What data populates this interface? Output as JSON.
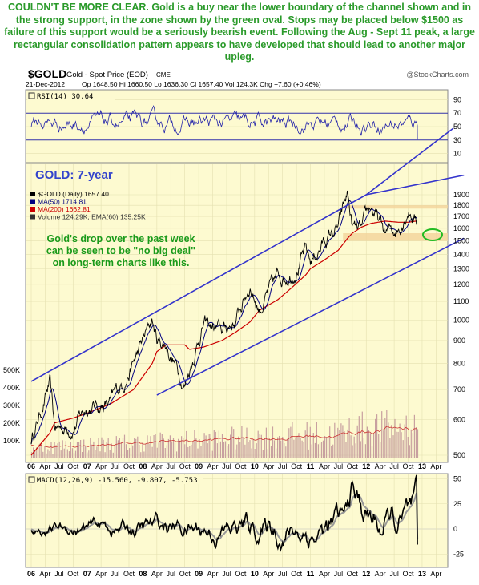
{
  "headline": {
    "lead": "COULDN'T BE MORE CLEAR.",
    "text": " Gold is a buy near the lower boundary of the channel shown and in the strong support, in the zone shown by the green oval. Stops may be placed below $1500 as failure of this support would be a seriously bearish event. Following the Aug - Sept 11 peak, a large rectangular consolidation pattern appears to have developed that should lead to another major upleg."
  },
  "header": {
    "symbol": "$GOLD",
    "name": "Gold - Spot Price (EOD)",
    "exchange": "CME",
    "watermark": "@StockCharts.com",
    "date": "21-Dec-2012",
    "quote": "Op 1648.50  Hi 1660.50  Lo 1636.30  Cl 1657.40  Vol 124.3K  Chg +7.60 (+0.46%)",
    "chg_up_icon": "up-triangle-icon"
  },
  "rsi_panel": {
    "label": "RSI(14) 30.64",
    "ticks": [
      "90",
      "70",
      "50",
      "30",
      "10"
    ]
  },
  "price_panel": {
    "title": "GOLD: 7-year",
    "legend": [
      {
        "text": "$GOLD (Daily) 1657.40",
        "color": "#000000"
      },
      {
        "text": "MA(50) 1714.81",
        "color": "#000080"
      },
      {
        "text": "MA(200) 1662.81",
        "color": "#cc0000"
      },
      {
        "text": "Volume 124.29K, EMA(60) 135.25K",
        "color": "#333333"
      }
    ],
    "annotation": [
      "Gold's drop over the past week",
      "can be seen to be \"no big deal\"",
      "on long-term charts like this."
    ],
    "price_ticks": [
      "1900",
      "1800",
      "1700",
      "1600",
      "1500",
      "1400",
      "1300",
      "1200",
      "1100",
      "1000",
      "900",
      "800",
      "700",
      "600",
      "500"
    ],
    "volume_ticks": [
      "500K",
      "400K",
      "300K",
      "200K",
      "100K"
    ],
    "x_labels": [
      "06",
      "Apr",
      "Jul",
      "Oct",
      "07",
      "Apr",
      "Jul",
      "Oct",
      "08",
      "Apr",
      "Jul",
      "Oct",
      "09",
      "Apr",
      "Jul",
      "Oct",
      "10",
      "Apr",
      "Jul",
      "Oct",
      "11",
      "Apr",
      "Jul",
      "Oct",
      "12",
      "Apr",
      "Jul",
      "Oct",
      "13",
      "Apr"
    ]
  },
  "macd_panel": {
    "label": "MACD(12,26,9) -15.560, -9.807, -5.753",
    "ticks": [
      "50",
      "25",
      "0",
      "-25"
    ],
    "x_labels": [
      "06",
      "Apr",
      "Jul",
      "Oct",
      "07",
      "Apr",
      "Jul",
      "Oct",
      "08",
      "Apr",
      "Jul",
      "Oct",
      "09",
      "Apr",
      "Jul",
      "Oct",
      "10",
      "Apr",
      "Jul",
      "Oct",
      "11",
      "Apr",
      "Jul",
      "Oct",
      "12",
      "Apr",
      "Jul",
      "Oct",
      "13",
      "Apr"
    ]
  },
  "colors": {
    "panel_bg": "#fdfad0",
    "price_line": "#000000",
    "ma50": "#000080",
    "ma200": "#cc0000",
    "channel": "#3333cc",
    "rsi_line": "#2222aa",
    "volume": "#c8a0a0",
    "zone": "#f3d39a",
    "oval": "#22bb22",
    "annotation_text": "#1a9a1a",
    "title_text": "#3344cc"
  },
  "chart_data": {
    "type": "line",
    "title": "GOLD: 7-year",
    "scale": "log",
    "ylim": [
      480,
      1950
    ],
    "x": [
      "2006-01",
      "2006-05",
      "2006-06",
      "2006-10",
      "2007-01",
      "2007-06",
      "2007-11",
      "2008-03",
      "2008-04",
      "2008-06",
      "2008-10",
      "2008-11",
      "2009-02",
      "2009-06",
      "2009-09",
      "2009-12",
      "2010-02",
      "2010-06",
      "2010-09",
      "2010-12",
      "2011-01",
      "2011-04",
      "2011-07",
      "2011-09",
      "2011-10",
      "2011-12",
      "2012-02",
      "2012-05",
      "2012-08",
      "2012-10",
      "2012-12"
    ],
    "series": [
      {
        "name": "$GOLD (Daily) 1657.40",
        "values": [
          540,
          720,
          570,
          580,
          640,
          650,
          800,
          1000,
          900,
          880,
          720,
          780,
          980,
          940,
          1000,
          1200,
          1060,
          1240,
          1280,
          1410,
          1340,
          1500,
          1600,
          1900,
          1600,
          1560,
          1780,
          1550,
          1610,
          1790,
          1657
        ]
      },
      {
        "name": "MA(200) 1662.81",
        "values": [
          500,
          560,
          590,
          605,
          620,
          650,
          700,
          800,
          850,
          880,
          880,
          860,
          870,
          900,
          940,
          990,
          1050,
          1110,
          1180,
          1260,
          1300,
          1360,
          1430,
          1520,
          1560,
          1610,
          1640,
          1660,
          1650,
          1650,
          1662
        ]
      }
    ],
    "channel": {
      "upper": [
        [
          0,
          730
        ],
        [
          24,
          1900
        ],
        [
          31,
          2100
        ]
      ],
      "lower": [
        [
          9,
          680
        ],
        [
          31,
          1520
        ]
      ]
    },
    "support_zone": [
      1500,
      1560
    ],
    "resistance_zone": [
      1770,
      1800
    ]
  }
}
